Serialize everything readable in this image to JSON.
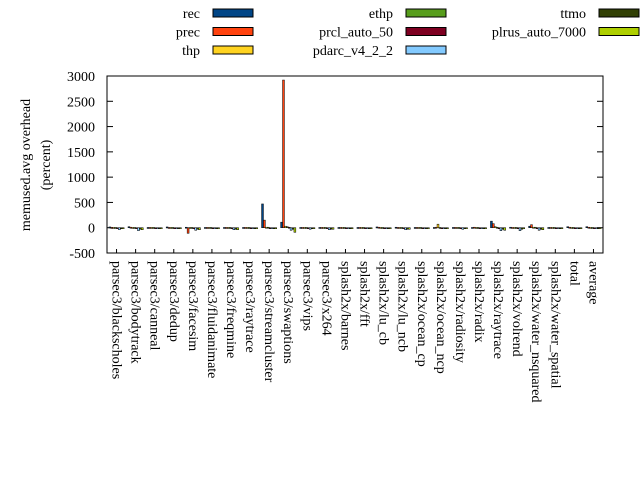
{
  "chart_data": {
    "type": "bar",
    "ylabel": "memused.avg overhead\n(percent)",
    "ylabel_lines": [
      "memused.avg overhead",
      "(percent)"
    ],
    "ylim": [
      -500,
      3000
    ],
    "yticks": [
      -500,
      0,
      500,
      1000,
      1500,
      2000,
      2500,
      3000
    ],
    "legend_placement": "top",
    "grid": false,
    "categories": [
      "parsec3/blackscholes",
      "parsec3/bodytrack",
      "parsec3/canneal",
      "parsec3/dedup",
      "parsec3/facesim",
      "parsec3/fluidanimate",
      "parsec3/freqmine",
      "parsec3/raytrace",
      "parsec3/streamcluster",
      "parsec3/swaptions",
      "parsec3/vips",
      "parsec3/x264",
      "splash2x/barnes",
      "splash2x/fft",
      "splash2x/lu_cb",
      "splash2x/lu_ncb",
      "splash2x/ocean_cp",
      "splash2x/ocean_ncp",
      "splash2x/radiosity",
      "splash2x/radix",
      "splash2x/raytrace",
      "splash2x/volrend",
      "splash2x/water_nsquared",
      "splash2x/water_spatial",
      "total",
      "average"
    ],
    "series": [
      {
        "name": "rec",
        "color": "#004586",
        "values": [
          15,
          20,
          5,
          15,
          10,
          5,
          5,
          5,
          470,
          110,
          5,
          5,
          5,
          5,
          15,
          10,
          5,
          5,
          5,
          5,
          130,
          10,
          30,
          5,
          20,
          20
        ]
      },
      {
        "name": "prec",
        "color": "#ff420e",
        "values": [
          5,
          10,
          5,
          5,
          -110,
          5,
          5,
          5,
          150,
          2920,
          5,
          5,
          5,
          5,
          10,
          5,
          5,
          10,
          5,
          10,
          80,
          5,
          60,
          5,
          10,
          10
        ]
      },
      {
        "name": "thp",
        "color": "#ffd320",
        "values": [
          5,
          5,
          5,
          5,
          5,
          5,
          5,
          5,
          10,
          30,
          5,
          5,
          5,
          5,
          5,
          5,
          5,
          70,
          5,
          5,
          20,
          5,
          10,
          5,
          5,
          5
        ]
      },
      {
        "name": "ethp",
        "color": "#579d1c",
        "values": [
          5,
          5,
          5,
          5,
          5,
          5,
          5,
          5,
          10,
          20,
          5,
          5,
          5,
          5,
          5,
          5,
          5,
          5,
          5,
          5,
          10,
          5,
          10,
          5,
          5,
          5
        ]
      },
      {
        "name": "prcl_auto_50",
        "color": "#7e0021",
        "values": [
          -20,
          -20,
          -10,
          -10,
          -20,
          -10,
          -20,
          -10,
          -20,
          10,
          -10,
          -20,
          -10,
          -5,
          -20,
          -20,
          -5,
          -10,
          -20,
          -10,
          -20,
          -20,
          -20,
          -10,
          -20,
          -20
        ]
      },
      {
        "name": "pdarc_v4_2_2",
        "color": "#83caff",
        "values": [
          -40,
          -60,
          -10,
          -10,
          -50,
          -10,
          -40,
          -20,
          -20,
          -50,
          -30,
          -40,
          -10,
          -5,
          -20,
          -40,
          -5,
          -10,
          -30,
          -10,
          -60,
          -60,
          -50,
          -10,
          -20,
          -20
        ]
      },
      {
        "name": "ttmo",
        "color": "#314004",
        "values": [
          -20,
          -30,
          -10,
          -10,
          -30,
          -10,
          -30,
          -10,
          -20,
          -30,
          -10,
          -30,
          -10,
          -5,
          -20,
          -30,
          -5,
          -10,
          -20,
          -10,
          -30,
          -30,
          -30,
          -10,
          -20,
          -20
        ]
      },
      {
        "name": "plrus_auto_7000",
        "color": "#aecf00",
        "values": [
          -20,
          -40,
          -10,
          -10,
          -40,
          -10,
          -40,
          -10,
          -20,
          -90,
          -10,
          -30,
          -10,
          -5,
          -20,
          -30,
          -5,
          -10,
          -20,
          -10,
          -50,
          -20,
          -40,
          -10,
          -20,
          -20
        ]
      }
    ]
  }
}
